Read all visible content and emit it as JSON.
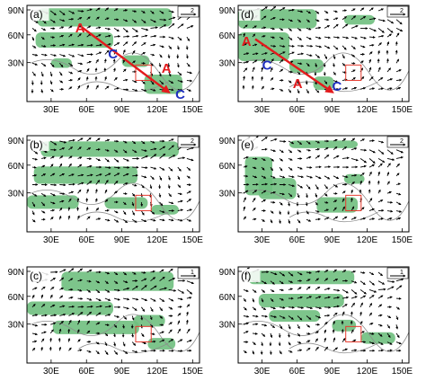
{
  "figure": {
    "colors": {
      "shade": "#6fbf7e",
      "arrow": "#000000",
      "box": "#e63a2e",
      "route": "#e31a1c",
      "anticyclone": "#e31a1c",
      "cyclone": "#1f2fbf",
      "coast": "#8c8c8c"
    },
    "panels": [
      {
        "label": "(a)",
        "ref": "2",
        "x_ticks": [
          "30E",
          "60E",
          "90E",
          "120E",
          "150E"
        ],
        "y_ticks": [
          "90N",
          "60N",
          "30N"
        ],
        "has_route": true,
        "annotations": [
          "A",
          "C",
          "A",
          "C"
        ]
      },
      {
        "label": "(b)",
        "ref": "2",
        "x_ticks": [
          "30E",
          "60E",
          "90E",
          "120E",
          "150E"
        ],
        "y_ticks": [
          "90N",
          "60N",
          "30N"
        ],
        "has_route": false,
        "annotations": []
      },
      {
        "label": "(c)",
        "ref": "1",
        "x_ticks": [
          "30E",
          "60E",
          "90E",
          "120E",
          "150E"
        ],
        "y_ticks": [
          "90N",
          "60N",
          "30N"
        ],
        "has_route": false,
        "annotations": []
      },
      {
        "label": "(d)",
        "ref": "2",
        "x_ticks": [
          "30E",
          "60E",
          "90E",
          "120E",
          "150E"
        ],
        "y_ticks": [
          "90N",
          "60N",
          "30N"
        ],
        "has_route": true,
        "annotations": [
          "A",
          "C",
          "A",
          "C"
        ]
      },
      {
        "label": "(e)",
        "ref": "2",
        "x_ticks": [
          "30E",
          "60E",
          "90E",
          "120E",
          "150E"
        ],
        "y_ticks": [
          "90N",
          "60N",
          "30N"
        ],
        "has_route": false,
        "annotations": []
      },
      {
        "label": "(f)",
        "ref": "1",
        "x_ticks": [
          "30E",
          "60E",
          "90E",
          "120E",
          "150E"
        ],
        "y_ticks": [
          "90N",
          "60N",
          "30N"
        ],
        "has_route": false,
        "annotations": []
      }
    ]
  }
}
